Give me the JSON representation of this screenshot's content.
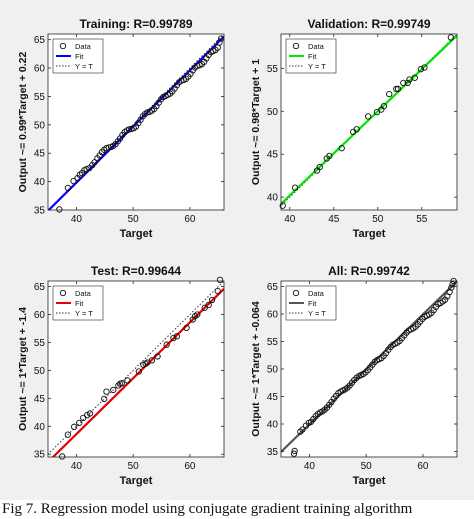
{
  "figure": {
    "background": "#f0f0f0",
    "caption": "Fig 7. Regression model using conjugate gradient training algorithm"
  },
  "chart_data": [
    {
      "type": "scatter",
      "title": "Training: R=0.99789",
      "xlabel": "Target",
      "ylabel": "Output ~= 0.99*Target + 0.22",
      "xlim": [
        35,
        66
      ],
      "ylim": [
        35,
        66
      ],
      "xticks": [
        40,
        50,
        60
      ],
      "yticks": [
        35,
        40,
        45,
        50,
        55,
        60,
        65
      ],
      "fit_color": "#0000ff",
      "fit": {
        "slope": 0.99,
        "intercept": 0.22
      },
      "legend": [
        "Data",
        "Fit",
        "Y = T"
      ],
      "legend_position": "top-left",
      "points": [
        [
          37.0,
          35.1
        ],
        [
          38.5,
          38.9
        ],
        [
          39.5,
          40.1
        ],
        [
          40.2,
          40.6
        ],
        [
          40.6,
          41.2
        ],
        [
          41.0,
          41.5
        ],
        [
          41.4,
          42.0
        ],
        [
          41.8,
          42.2
        ],
        [
          42.3,
          42.4
        ],
        [
          42.8,
          42.9
        ],
        [
          43.2,
          43.4
        ],
        [
          43.7,
          44.1
        ],
        [
          44.1,
          44.6
        ],
        [
          44.5,
          45.2
        ],
        [
          44.9,
          45.6
        ],
        [
          45.3,
          45.9
        ],
        [
          45.7,
          46.0
        ],
        [
          46.1,
          46.1
        ],
        [
          46.5,
          46.3
        ],
        [
          46.9,
          46.6
        ],
        [
          47.3,
          47.1
        ],
        [
          47.7,
          47.6
        ],
        [
          48.1,
          48.2
        ],
        [
          48.5,
          48.7
        ],
        [
          48.9,
          49.0
        ],
        [
          49.3,
          49.2
        ],
        [
          49.7,
          49.3
        ],
        [
          50.1,
          49.4
        ],
        [
          50.5,
          49.7
        ],
        [
          50.9,
          50.3
        ],
        [
          51.3,
          50.9
        ],
        [
          51.7,
          51.5
        ],
        [
          52.1,
          51.9
        ],
        [
          52.5,
          52.2
        ],
        [
          52.9,
          52.3
        ],
        [
          53.3,
          52.5
        ],
        [
          53.7,
          52.8
        ],
        [
          54.1,
          53.3
        ],
        [
          54.5,
          53.9
        ],
        [
          54.9,
          54.5
        ],
        [
          55.3,
          54.9
        ],
        [
          55.7,
          55.1
        ],
        [
          56.1,
          55.3
        ],
        [
          56.5,
          55.5
        ],
        [
          56.9,
          55.9
        ],
        [
          57.3,
          56.4
        ],
        [
          57.7,
          57.0
        ],
        [
          58.1,
          57.5
        ],
        [
          58.5,
          57.8
        ],
        [
          58.9,
          57.9
        ],
        [
          59.3,
          58.1
        ],
        [
          59.7,
          58.5
        ],
        [
          60.1,
          59.0
        ],
        [
          60.5,
          59.6
        ],
        [
          60.9,
          60.1
        ],
        [
          61.3,
          60.4
        ],
        [
          61.7,
          60.5
        ],
        [
          62.1,
          60.7
        ],
        [
          62.5,
          61.1
        ],
        [
          62.9,
          61.7
        ],
        [
          63.3,
          62.3
        ],
        [
          63.7,
          62.8
        ],
        [
          64.1,
          63.0
        ],
        [
          64.5,
          63.2
        ],
        [
          64.9,
          63.6
        ],
        [
          65.2,
          64.5
        ],
        [
          65.5,
          65.2
        ]
      ]
    },
    {
      "type": "scatter",
      "title": "Validation: R=0.99749",
      "xlabel": "Target",
      "ylabel": "Output ~= 0.98*Target + 1",
      "xlim": [
        39,
        59
      ],
      "ylim": [
        38.5,
        59
      ],
      "xticks": [
        40,
        45,
        50,
        55
      ],
      "yticks": [
        40,
        45,
        50,
        55
      ],
      "fit_color": "#00e600",
      "fit": {
        "slope": 0.98,
        "intercept": 1.0
      },
      "legend": [
        "Data",
        "Fit",
        "Y = T"
      ],
      "legend_position": "top-left",
      "points": [
        [
          39.2,
          39.0
        ],
        [
          40.6,
          41.1
        ],
        [
          43.1,
          43.1
        ],
        [
          43.4,
          43.5
        ],
        [
          44.2,
          44.5
        ],
        [
          44.5,
          44.8
        ],
        [
          45.9,
          45.7
        ],
        [
          47.2,
          47.6
        ],
        [
          47.6,
          47.9
        ],
        [
          48.9,
          49.4
        ],
        [
          49.9,
          49.9
        ],
        [
          50.4,
          50.2
        ],
        [
          50.7,
          50.6
        ],
        [
          51.3,
          52.0
        ],
        [
          52.1,
          52.6
        ],
        [
          52.3,
          52.6
        ],
        [
          52.9,
          53.3
        ],
        [
          53.4,
          53.3
        ],
        [
          53.6,
          53.7
        ],
        [
          54.2,
          53.9
        ],
        [
          54.9,
          54.9
        ],
        [
          55.3,
          55.1
        ],
        [
          58.3,
          58.6
        ]
      ]
    },
    {
      "type": "scatter",
      "title": "Test: R=0.99644",
      "xlabel": "Target",
      "ylabel": "Output ~= 1*Target + -1.4",
      "xlim": [
        35,
        66
      ],
      "ylim": [
        34.5,
        66
      ],
      "xticks": [
        40,
        50,
        60
      ],
      "yticks": [
        35,
        40,
        45,
        50,
        55,
        60,
        65
      ],
      "fit_color": "#e60000",
      "fit": {
        "slope": 1.0,
        "intercept": -1.4
      },
      "legend": [
        "Data",
        "Fit",
        "Y = T"
      ],
      "legend_position": "top-left",
      "points": [
        [
          37.5,
          34.6
        ],
        [
          38.5,
          38.5
        ],
        [
          39.6,
          39.9
        ],
        [
          40.5,
          40.6
        ],
        [
          41.2,
          41.5
        ],
        [
          41.9,
          42.0
        ],
        [
          42.4,
          42.3
        ],
        [
          44.9,
          44.9
        ],
        [
          45.3,
          46.2
        ],
        [
          46.5,
          46.5
        ],
        [
          47.4,
          47.3
        ],
        [
          47.7,
          47.6
        ],
        [
          48.0,
          47.7
        ],
        [
          49.0,
          48.2
        ],
        [
          51.0,
          49.8
        ],
        [
          51.8,
          51.0
        ],
        [
          52.2,
          51.2
        ],
        [
          52.5,
          51.4
        ],
        [
          53.3,
          51.8
        ],
        [
          54.3,
          52.5
        ],
        [
          55.9,
          54.6
        ],
        [
          57.1,
          55.8
        ],
        [
          57.7,
          56.1
        ],
        [
          59.4,
          57.6
        ],
        [
          60.5,
          59.1
        ],
        [
          60.9,
          59.7
        ],
        [
          61.3,
          60.0
        ],
        [
          62.6,
          61.2
        ],
        [
          63.3,
          61.7
        ],
        [
          63.9,
          62.6
        ],
        [
          64.9,
          64.2
        ],
        [
          65.3,
          66.2
        ]
      ]
    },
    {
      "type": "scatter",
      "title": "All: R=0.99742",
      "xlabel": "Target",
      "ylabel": "Output ~= 1*Target + -0.064",
      "xlim": [
        35,
        66
      ],
      "ylim": [
        34,
        66
      ],
      "xticks": [
        40,
        50,
        60
      ],
      "yticks": [
        35,
        40,
        45,
        50,
        55,
        60,
        65
      ],
      "fit_color": "#555555",
      "fit": {
        "slope": 1.0,
        "intercept": -0.064
      },
      "legend": [
        "Data",
        "Fit",
        "Y = T"
      ],
      "legend_position": "top-left",
      "points": [
        [
          37.3,
          34.6
        ],
        [
          37.4,
          35.1
        ],
        [
          38.4,
          38.6
        ],
        [
          38.8,
          39.0
        ],
        [
          39.4,
          39.7
        ],
        [
          39.9,
          40.2
        ],
        [
          40.3,
          40.4
        ],
        [
          40.7,
          40.9
        ],
        [
          41.1,
          41.4
        ],
        [
          41.5,
          41.8
        ],
        [
          41.9,
          42.1
        ],
        [
          42.3,
          42.3
        ],
        [
          42.7,
          42.6
        ],
        [
          43.1,
          43.0
        ],
        [
          43.5,
          43.5
        ],
        [
          43.9,
          44.0
        ],
        [
          44.3,
          44.6
        ],
        [
          44.7,
          45.1
        ],
        [
          45.1,
          45.6
        ],
        [
          45.5,
          45.9
        ],
        [
          45.9,
          46.1
        ],
        [
          46.3,
          46.3
        ],
        [
          46.7,
          46.6
        ],
        [
          47.1,
          47.0
        ],
        [
          47.5,
          47.5
        ],
        [
          47.9,
          48.0
        ],
        [
          48.3,
          48.4
        ],
        [
          48.7,
          48.7
        ],
        [
          49.1,
          48.9
        ],
        [
          49.5,
          49.1
        ],
        [
          49.9,
          49.4
        ],
        [
          50.3,
          49.8
        ],
        [
          50.7,
          50.3
        ],
        [
          51.1,
          50.8
        ],
        [
          51.5,
          51.3
        ],
        [
          51.9,
          51.6
        ],
        [
          52.3,
          51.8
        ],
        [
          52.7,
          52.0
        ],
        [
          53.1,
          52.4
        ],
        [
          53.5,
          52.9
        ],
        [
          53.9,
          53.5
        ],
        [
          54.3,
          54.0
        ],
        [
          54.7,
          54.4
        ],
        [
          55.1,
          54.6
        ],
        [
          55.5,
          54.8
        ],
        [
          55.9,
          55.1
        ],
        [
          56.3,
          55.6
        ],
        [
          56.7,
          56.1
        ],
        [
          57.1,
          56.6
        ],
        [
          57.5,
          57.0
        ],
        [
          57.9,
          57.2
        ],
        [
          58.3,
          57.4
        ],
        [
          58.7,
          57.7
        ],
        [
          59.1,
          58.1
        ],
        [
          59.5,
          58.6
        ],
        [
          59.9,
          59.1
        ],
        [
          60.3,
          59.5
        ],
        [
          60.7,
          59.7
        ],
        [
          61.1,
          59.9
        ],
        [
          61.5,
          60.2
        ],
        [
          61.9,
          60.7
        ],
        [
          62.3,
          61.3
        ],
        [
          62.7,
          61.8
        ],
        [
          63.1,
          62.0
        ],
        [
          63.5,
          62.3
        ],
        [
          63.9,
          62.6
        ],
        [
          64.3,
          63.2
        ],
        [
          64.7,
          64.0
        ],
        [
          65.0,
          64.8
        ],
        [
          65.2,
          65.4
        ],
        [
          65.4,
          66.0
        ]
      ]
    }
  ]
}
